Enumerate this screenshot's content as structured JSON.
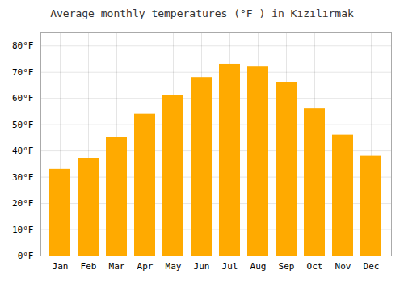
{
  "chart_data": {
    "type": "bar",
    "title": "Average monthly temperatures (°F ) in Kızılırmak",
    "categories": [
      "Jan",
      "Feb",
      "Mar",
      "Apr",
      "May",
      "Jun",
      "Jul",
      "Aug",
      "Sep",
      "Oct",
      "Nov",
      "Dec"
    ],
    "values": [
      33,
      37,
      45,
      54,
      61,
      68,
      73,
      72,
      66,
      56,
      46,
      38
    ],
    "color": "#FFAA00",
    "ylim": [
      0,
      85
    ],
    "yticks": [
      {
        "value": 0,
        "label": "0°F"
      },
      {
        "value": 10,
        "label": "10°F"
      },
      {
        "value": 20,
        "label": "20°F"
      },
      {
        "value": 30,
        "label": "30°F"
      },
      {
        "value": 40,
        "label": "40°F"
      },
      {
        "value": 50,
        "label": "50°F"
      },
      {
        "value": 60,
        "label": "60°F"
      },
      {
        "value": 70,
        "label": "70°F"
      },
      {
        "value": 80,
        "label": "80°F"
      }
    ],
    "grid": true
  }
}
